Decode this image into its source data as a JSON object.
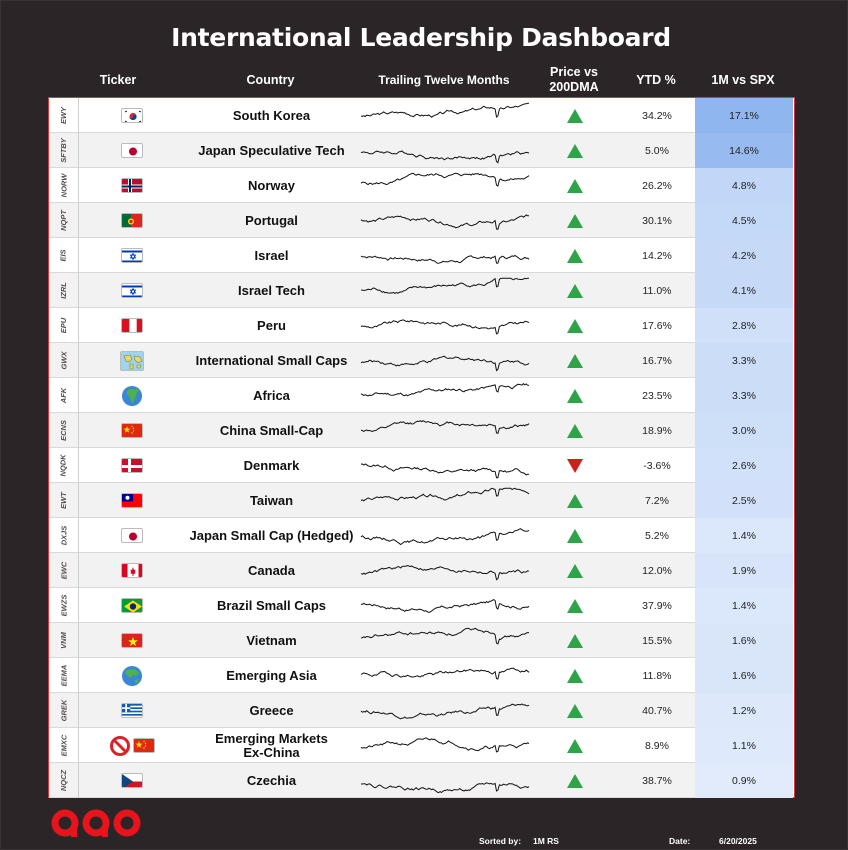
{
  "title": "International Leadership Dashboard",
  "headers": {
    "ticker": "Ticker",
    "country": "Country",
    "ttm": "Trailing Twelve Months",
    "dma_line1": "Price vs",
    "dma_line2": "200DMA",
    "ytd": "YTD %",
    "rs": "1M vs SPX"
  },
  "colors": {
    "background": "#2c2527",
    "table_border": "#d6373e",
    "up": "#2ea347",
    "down": "#d41e1e",
    "rs_strong": "#8fb6ef",
    "rs_light": "#e3ecfb",
    "logo": "#e8141c"
  },
  "rows": [
    {
      "ticker": "EWY",
      "flag": "kr",
      "flag_emoji": "🇰🇷",
      "country": "South Korea",
      "dma": "up",
      "ytd": "34.2%",
      "rs": "17.1%",
      "rs_value": 17.1
    },
    {
      "ticker": "SFTBY",
      "flag": "jp",
      "flag_emoji": "🇯🇵",
      "country": "Japan Speculative Tech",
      "dma": "up",
      "ytd": "5.0%",
      "rs": "14.6%",
      "rs_value": 14.6
    },
    {
      "ticker": "NORW",
      "flag": "no",
      "flag_emoji": "🇳🇴",
      "country": "Norway",
      "dma": "up",
      "ytd": "26.2%",
      "rs": "4.8%",
      "rs_value": 4.8
    },
    {
      "ticker": "NQPT",
      "flag": "pt",
      "flag_emoji": "🇵🇹",
      "country": "Portugal",
      "dma": "up",
      "ytd": "30.1%",
      "rs": "4.5%",
      "rs_value": 4.5
    },
    {
      "ticker": "EIS",
      "flag": "il",
      "flag_emoji": "🇮🇱",
      "country": "Israel",
      "dma": "up",
      "ytd": "14.2%",
      "rs": "4.2%",
      "rs_value": 4.2
    },
    {
      "ticker": "IZRL",
      "flag": "il",
      "flag_emoji": "🇮🇱",
      "country": "Israel Tech",
      "dma": "up",
      "ytd": "11.0%",
      "rs": "4.1%",
      "rs_value": 4.1
    },
    {
      "ticker": "EPU",
      "flag": "pe",
      "flag_emoji": "🇵🇪",
      "country": "Peru",
      "dma": "up",
      "ytd": "17.6%",
      "rs": "2.8%",
      "rs_value": 2.8
    },
    {
      "ticker": "GWX",
      "flag": "world-map",
      "flag_emoji": "🗺️",
      "country": "International Small Caps",
      "dma": "up",
      "ytd": "16.7%",
      "rs": "3.3%",
      "rs_value": 3.3
    },
    {
      "ticker": "AFK",
      "flag": "globe-africa",
      "flag_emoji": "🌍",
      "country": "Africa",
      "dma": "up",
      "ytd": "23.5%",
      "rs": "3.3%",
      "rs_value": 3.3
    },
    {
      "ticker": "ECNS",
      "flag": "cn",
      "flag_emoji": "🇨🇳",
      "country": "China Small-Cap",
      "dma": "up",
      "ytd": "18.9%",
      "rs": "3.0%",
      "rs_value": 3.0
    },
    {
      "ticker": "NQDK",
      "flag": "dk",
      "flag_emoji": "🇩🇰",
      "country": "Denmark",
      "dma": "down",
      "ytd": "-3.6%",
      "rs": "2.6%",
      "rs_value": 2.6
    },
    {
      "ticker": "EWT",
      "flag": "tw",
      "flag_emoji": "🇹🇼",
      "country": "Taiwan",
      "dma": "up",
      "ytd": "7.2%",
      "rs": "2.5%",
      "rs_value": 2.5
    },
    {
      "ticker": "DXJS",
      "flag": "jp",
      "flag_emoji": "🇯🇵",
      "country": "Japan Small Cap (Hedged)",
      "dma": "up",
      "ytd": "5.2%",
      "rs": "1.4%",
      "rs_value": 1.4
    },
    {
      "ticker": "EWC",
      "flag": "ca",
      "flag_emoji": "🇨🇦",
      "country": "Canada",
      "dma": "up",
      "ytd": "12.0%",
      "rs": "1.9%",
      "rs_value": 1.9
    },
    {
      "ticker": "EWZS",
      "flag": "br",
      "flag_emoji": "🇧🇷",
      "country": "Brazil Small Caps",
      "dma": "up",
      "ytd": "37.9%",
      "rs": "1.4%",
      "rs_value": 1.4
    },
    {
      "ticker": "VNM",
      "flag": "vn",
      "flag_emoji": "🇻🇳",
      "country": "Vietnam",
      "dma": "up",
      "ytd": "15.5%",
      "rs": "1.6%",
      "rs_value": 1.6
    },
    {
      "ticker": "EEMA",
      "flag": "globe-asia",
      "flag_emoji": "🌏",
      "country": "Emerging Asia",
      "dma": "up",
      "ytd": "11.8%",
      "rs": "1.6%",
      "rs_value": 1.6
    },
    {
      "ticker": "GREK",
      "flag": "gr",
      "flag_emoji": "🇬🇷",
      "country": "Greece",
      "dma": "up",
      "ytd": "40.7%",
      "rs": "1.2%",
      "rs_value": 1.2
    },
    {
      "ticker": "EMXC",
      "flag": "no-china",
      "flag_emoji": "🚫🇨🇳",
      "country": "Emerging Markets Ex-China",
      "country_line1": "Emerging Markets",
      "country_line2": "Ex-China",
      "dma": "up",
      "ytd": "8.9%",
      "rs": "1.1%",
      "rs_value": 1.1
    },
    {
      "ticker": "NQCZ",
      "flag": "cz",
      "flag_emoji": "🇨🇿",
      "country": "Czechia",
      "dma": "up",
      "ytd": "38.7%",
      "rs": "0.9%",
      "rs_value": 0.9
    }
  ],
  "footer": {
    "sorted_label": "Sorted by:",
    "sorted_value": "1M RS",
    "date_label": "Date:",
    "date_value": "6/20/2025"
  },
  "logo_icon": "red-linked-letters-logo"
}
